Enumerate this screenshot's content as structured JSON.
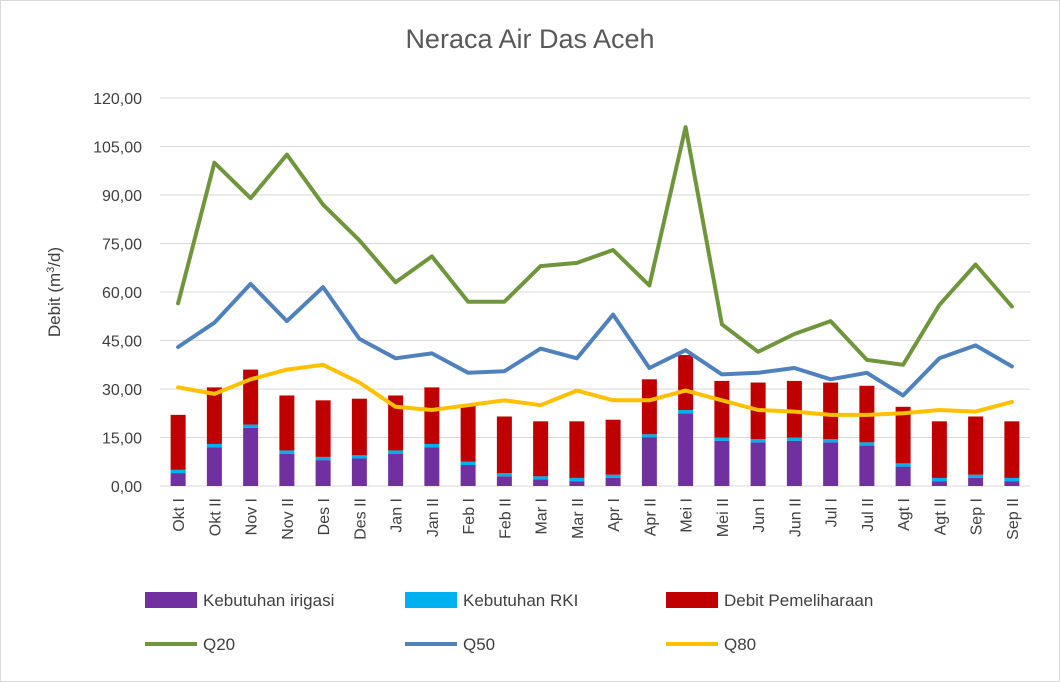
{
  "chart_data": {
    "type": "bar",
    "title": "Neraca Air Das Aceh",
    "ylabel_main": "Debit (m",
    "ylabel_sup": "3",
    "ylabel_end": "/d)",
    "xlabel": "",
    "ylim": [
      0,
      120
    ],
    "yticks": [
      0,
      15,
      30,
      45,
      60,
      75,
      90,
      105,
      120
    ],
    "ytick_labels": [
      "0,00",
      "15,00",
      "30,00",
      "45,00",
      "60,00",
      "75,00",
      "90,00",
      "105,00",
      "120,00"
    ],
    "grid": true,
    "legend_position": "bottom",
    "categories": [
      "Okt I",
      "Okt II",
      "Nov I",
      "Nov II",
      "Des I",
      "Des II",
      "Jan I",
      "Jan II",
      "Feb I",
      "Feb II",
      "Mar I",
      "Mar II",
      "Apr I",
      "Apr II",
      "Mei I",
      "Mei II",
      "Jun I",
      "Jun II",
      "Jul I",
      "Jul II",
      "Agt I",
      "Agt II",
      "Sep I",
      "Sep II"
    ],
    "bar_series": [
      {
        "name": "Kebutuhan irigasi",
        "color": "#7030a0",
        "values": [
          4.0,
          12.0,
          18.0,
          10.0,
          8.0,
          8.5,
          10.0,
          12.0,
          6.5,
          3.0,
          2.0,
          1.5,
          2.5,
          15.0,
          22.5,
          14.0,
          13.5,
          14.0,
          13.5,
          12.5,
          6.0,
          1.5,
          2.5,
          1.5
        ]
      },
      {
        "name": "Kebutuhan RKI",
        "color": "#00b0f0",
        "values": [
          1.0,
          1.0,
          1.0,
          1.0,
          1.0,
          1.0,
          1.0,
          1.0,
          1.0,
          1.0,
          1.0,
          1.0,
          1.0,
          1.0,
          1.0,
          1.0,
          1.0,
          1.0,
          1.0,
          1.0,
          1.0,
          1.0,
          1.0,
          1.0
        ]
      },
      {
        "name": "Debit Pemeliharaan",
        "color": "#c00000",
        "values": [
          17.0,
          17.5,
          17.0,
          17.0,
          17.5,
          17.5,
          17.0,
          17.5,
          17.5,
          17.5,
          17.0,
          17.5,
          17.0,
          17.0,
          17.0,
          17.5,
          17.5,
          17.5,
          17.5,
          17.5,
          17.5,
          17.5,
          18.0,
          17.5
        ]
      }
    ],
    "line_series": [
      {
        "name": "Q20",
        "color": "#70963c",
        "values": [
          56.5,
          100.0,
          89.0,
          102.5,
          87.0,
          76.0,
          63.0,
          71.0,
          57.0,
          57.0,
          68.0,
          69.0,
          73.0,
          62.0,
          111.0,
          50.0,
          41.5,
          47.0,
          51.0,
          39.0,
          37.5,
          56.0,
          68.5,
          55.5
        ]
      },
      {
        "name": "Q50",
        "color": "#4f81bd",
        "values": [
          43.0,
          50.5,
          62.5,
          51.0,
          61.5,
          45.5,
          39.5,
          41.0,
          35.0,
          35.5,
          42.5,
          39.5,
          53.0,
          36.5,
          42.0,
          34.5,
          35.0,
          36.5,
          33.0,
          35.0,
          28.0,
          39.5,
          43.5,
          37.0
        ]
      },
      {
        "name": "Q80",
        "color": "#ffc000",
        "values": [
          30.5,
          28.5,
          33.0,
          36.0,
          37.5,
          32.0,
          24.5,
          23.5,
          25.0,
          26.5,
          25.0,
          29.5,
          26.5,
          26.5,
          29.5,
          26.5,
          23.5,
          23.0,
          22.0,
          22.0,
          22.5,
          23.5,
          23.0,
          26.0
        ]
      }
    ]
  }
}
